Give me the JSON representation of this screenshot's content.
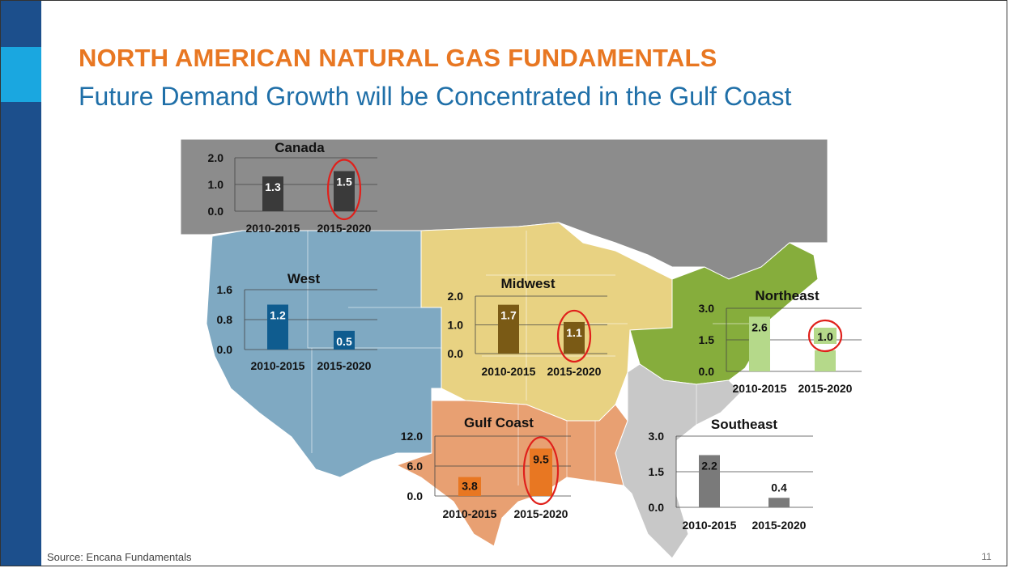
{
  "slide": {
    "title": "NORTH AMERICAN NATURAL GAS FUNDAMENTALS",
    "subtitle": "Future Demand Growth will be Concentrated in the Gulf Coast",
    "source": "Source: Encana Fundamentals",
    "page_number": "11"
  },
  "colors": {
    "title": "#e87722",
    "subtitle": "#1f6fa8",
    "sidebar": "#1c4f8c",
    "highlight_circle": "#e0201b",
    "map_canada": "#8c8c8c",
    "map_west": "#7fa9c2",
    "map_midwest": "#e8d282",
    "map_northeast": "#86ad3c",
    "map_gulf": "#e8a072",
    "map_southeast": "#c8c8c8"
  },
  "chart_data": [
    {
      "type": "bar",
      "title": "Canada",
      "categories": [
        "2010-2015",
        "2015-2020"
      ],
      "values": [
        1.3,
        1.5
      ],
      "value_labels": [
        "1.3",
        "1.5"
      ],
      "yticks": [
        "0.0",
        "1.0",
        "2.0"
      ],
      "ylim": [
        0,
        2.0
      ],
      "bar_colors": [
        "#3a3a3a",
        "#3a3a3a"
      ],
      "highlighted": [
        false,
        true
      ]
    },
    {
      "type": "bar",
      "title": "West",
      "categories": [
        "2010-2015",
        "2015-2020"
      ],
      "values": [
        1.2,
        0.5
      ],
      "value_labels": [
        "1.2",
        "0.5"
      ],
      "yticks": [
        "0.0",
        "0.8",
        "1.6"
      ],
      "ylim": [
        0,
        1.6
      ],
      "bar_colors": [
        "#0f5c8f",
        "#0f5c8f"
      ],
      "highlighted": [
        false,
        false
      ]
    },
    {
      "type": "bar",
      "title": "Midwest",
      "categories": [
        "2010-2015",
        "2015-2020"
      ],
      "values": [
        1.7,
        1.1
      ],
      "value_labels": [
        "1.7",
        "1.1"
      ],
      "yticks": [
        "0.0",
        "1.0",
        "2.0"
      ],
      "ylim": [
        0,
        2.0
      ],
      "bar_colors": [
        "#7a5a15",
        "#7a5a15"
      ],
      "highlighted": [
        false,
        true
      ]
    },
    {
      "type": "bar",
      "title": "Northeast",
      "categories": [
        "2010-2015",
        "2015-2020"
      ],
      "values": [
        2.6,
        1.0
      ],
      "value_labels": [
        "2.6",
        "1.0"
      ],
      "yticks": [
        "0.0",
        "1.5",
        "3.0"
      ],
      "ylim": [
        0,
        3.0
      ],
      "bar_colors": [
        "#b5d98a",
        "#b5d98a"
      ],
      "highlighted": [
        false,
        true
      ]
    },
    {
      "type": "bar",
      "title": "Gulf Coast",
      "categories": [
        "2010-2015",
        "2015-2020"
      ],
      "values": [
        3.8,
        9.5
      ],
      "value_labels": [
        "3.8",
        "9.5"
      ],
      "yticks": [
        "0.0",
        "6.0",
        "12.0"
      ],
      "ylim": [
        0,
        12.0
      ],
      "bar_colors": [
        "#e87722",
        "#e87722"
      ],
      "highlighted": [
        false,
        true
      ]
    },
    {
      "type": "bar",
      "title": "Southeast",
      "categories": [
        "2010-2015",
        "2015-2020"
      ],
      "values": [
        2.2,
        0.4
      ],
      "value_labels": [
        "2.2",
        "0.4"
      ],
      "yticks": [
        "0.0",
        "1.5",
        "3.0"
      ],
      "ylim": [
        0,
        3.0
      ],
      "bar_colors": [
        "#7a7a7a",
        "#7a7a7a"
      ],
      "highlighted": [
        false,
        false
      ]
    }
  ]
}
